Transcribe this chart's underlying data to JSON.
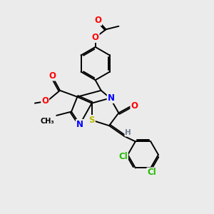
{
  "bg_color": "#ebebeb",
  "bond_color": "#000000",
  "bond_width": 1.4,
  "atom_colors": {
    "O": "#ff0000",
    "N": "#0000ff",
    "S": "#bbbb00",
    "Cl": "#22bb00",
    "H": "#708090",
    "C": "#000000"
  },
  "font_size": 8.5
}
